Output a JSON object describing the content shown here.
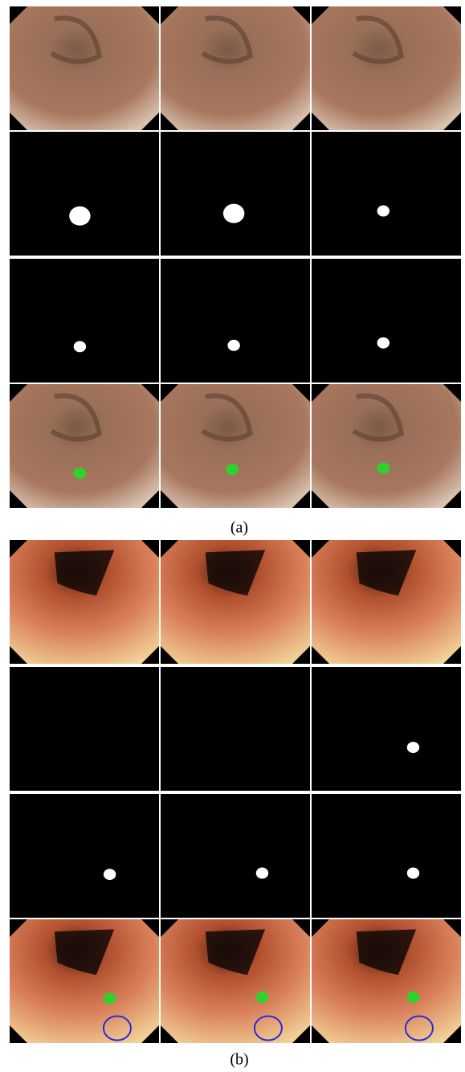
{
  "figure": {
    "panels": [
      {
        "label": "(a)"
      },
      {
        "label": "(b)"
      }
    ]
  }
}
